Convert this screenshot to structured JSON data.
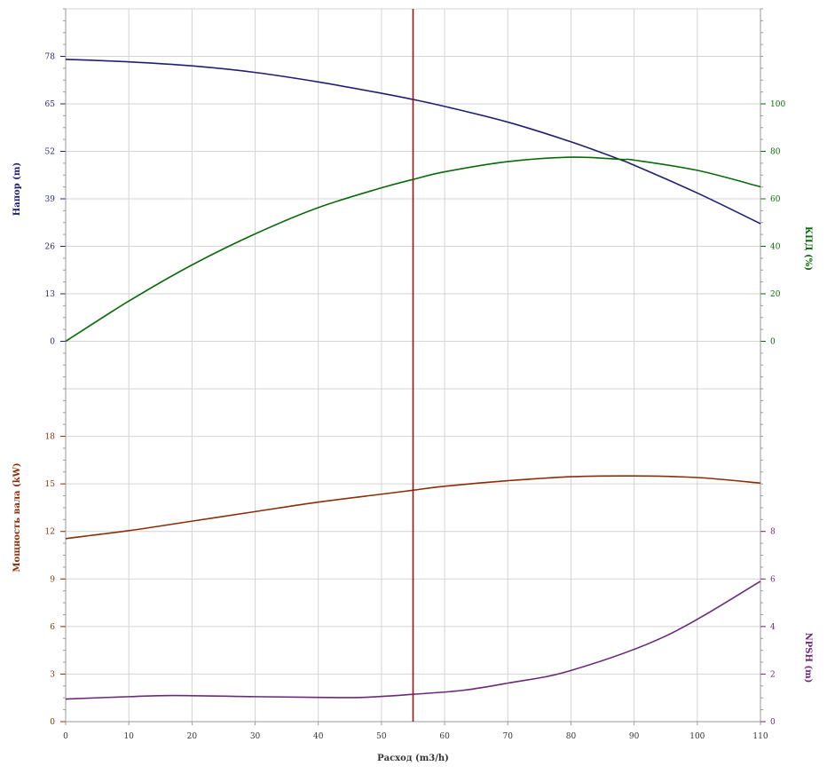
{
  "chart_data": {
    "type": "line",
    "xlabel": "Расход (m3/h)",
    "x_ticks": [
      0,
      10,
      20,
      30,
      40,
      50,
      60,
      70,
      80,
      90,
      100,
      110
    ],
    "xlim": [
      0,
      110
    ],
    "grid": true,
    "operating_point_x": 55,
    "colors": {
      "head": "#1f1f73",
      "efficiency": "#0a6a0a",
      "power": "#8b2e08",
      "npsh": "#6a2a7a",
      "marker": "#8b1a1a",
      "grid": "#d4d4d4",
      "axis": "#999999"
    },
    "panels": [
      {
        "id": "top",
        "left_label": "Напор (m)",
        "left_ticks": [
          0,
          13,
          26,
          39,
          52,
          65,
          78
        ],
        "left_range": [
          -13,
          91
        ],
        "right_label": "КПД (%)",
        "right_ticks": [
          0,
          20,
          40,
          60,
          80,
          100
        ],
        "right_range": [
          -20,
          140
        ]
      },
      {
        "id": "bottom",
        "left_label": "Мощность вала (kW)",
        "left_ticks": [
          0,
          3,
          6,
          9,
          12,
          15,
          18
        ],
        "left_range": [
          0,
          21
        ],
        "right_label": "NPSH (m)",
        "right_ticks": [
          0,
          2,
          4,
          6,
          8
        ],
        "right_range": [
          0,
          14
        ]
      }
    ],
    "series": [
      {
        "key": "head",
        "panel": "top",
        "axis": "left",
        "x": [
          0,
          10,
          20,
          30,
          40,
          50,
          55,
          60,
          70,
          80,
          88,
          90,
          100,
          110
        ],
        "y": [
          77.2,
          76.5,
          75.4,
          73.6,
          71.0,
          67.9,
          66.2,
          64.3,
          60.0,
          54.6,
          49.6,
          48.2,
          40.6,
          32.2
        ]
      },
      {
        "key": "efficiency",
        "panel": "top",
        "axis": "left",
        "x": [
          0,
          10,
          20,
          30,
          40,
          50,
          55,
          60,
          70,
          80,
          88,
          90,
          100,
          110
        ],
        "y": [
          0.0,
          11.0,
          20.9,
          29.4,
          36.6,
          42.0,
          44.3,
          46.4,
          49.2,
          50.4,
          49.8,
          49.6,
          46.8,
          42.3
        ]
      },
      {
        "key": "power",
        "panel": "bottom",
        "axis": "left",
        "x": [
          0,
          10,
          20,
          30,
          40,
          50,
          55,
          60,
          70,
          80,
          90,
          100,
          110
        ],
        "y": [
          11.55,
          12.05,
          12.65,
          13.25,
          13.85,
          14.35,
          14.6,
          14.85,
          15.2,
          15.45,
          15.5,
          15.4,
          15.05
        ]
      },
      {
        "key": "npsh",
        "panel": "bottom",
        "axis": "right",
        "x": [
          0,
          10,
          17,
          30,
          40,
          47,
          55,
          63,
          70,
          80,
          95,
          110
        ],
        "y": [
          0.95,
          1.05,
          1.1,
          1.05,
          1.02,
          1.02,
          1.15,
          1.32,
          1.62,
          2.15,
          3.6,
          5.9
        ]
      }
    ]
  }
}
